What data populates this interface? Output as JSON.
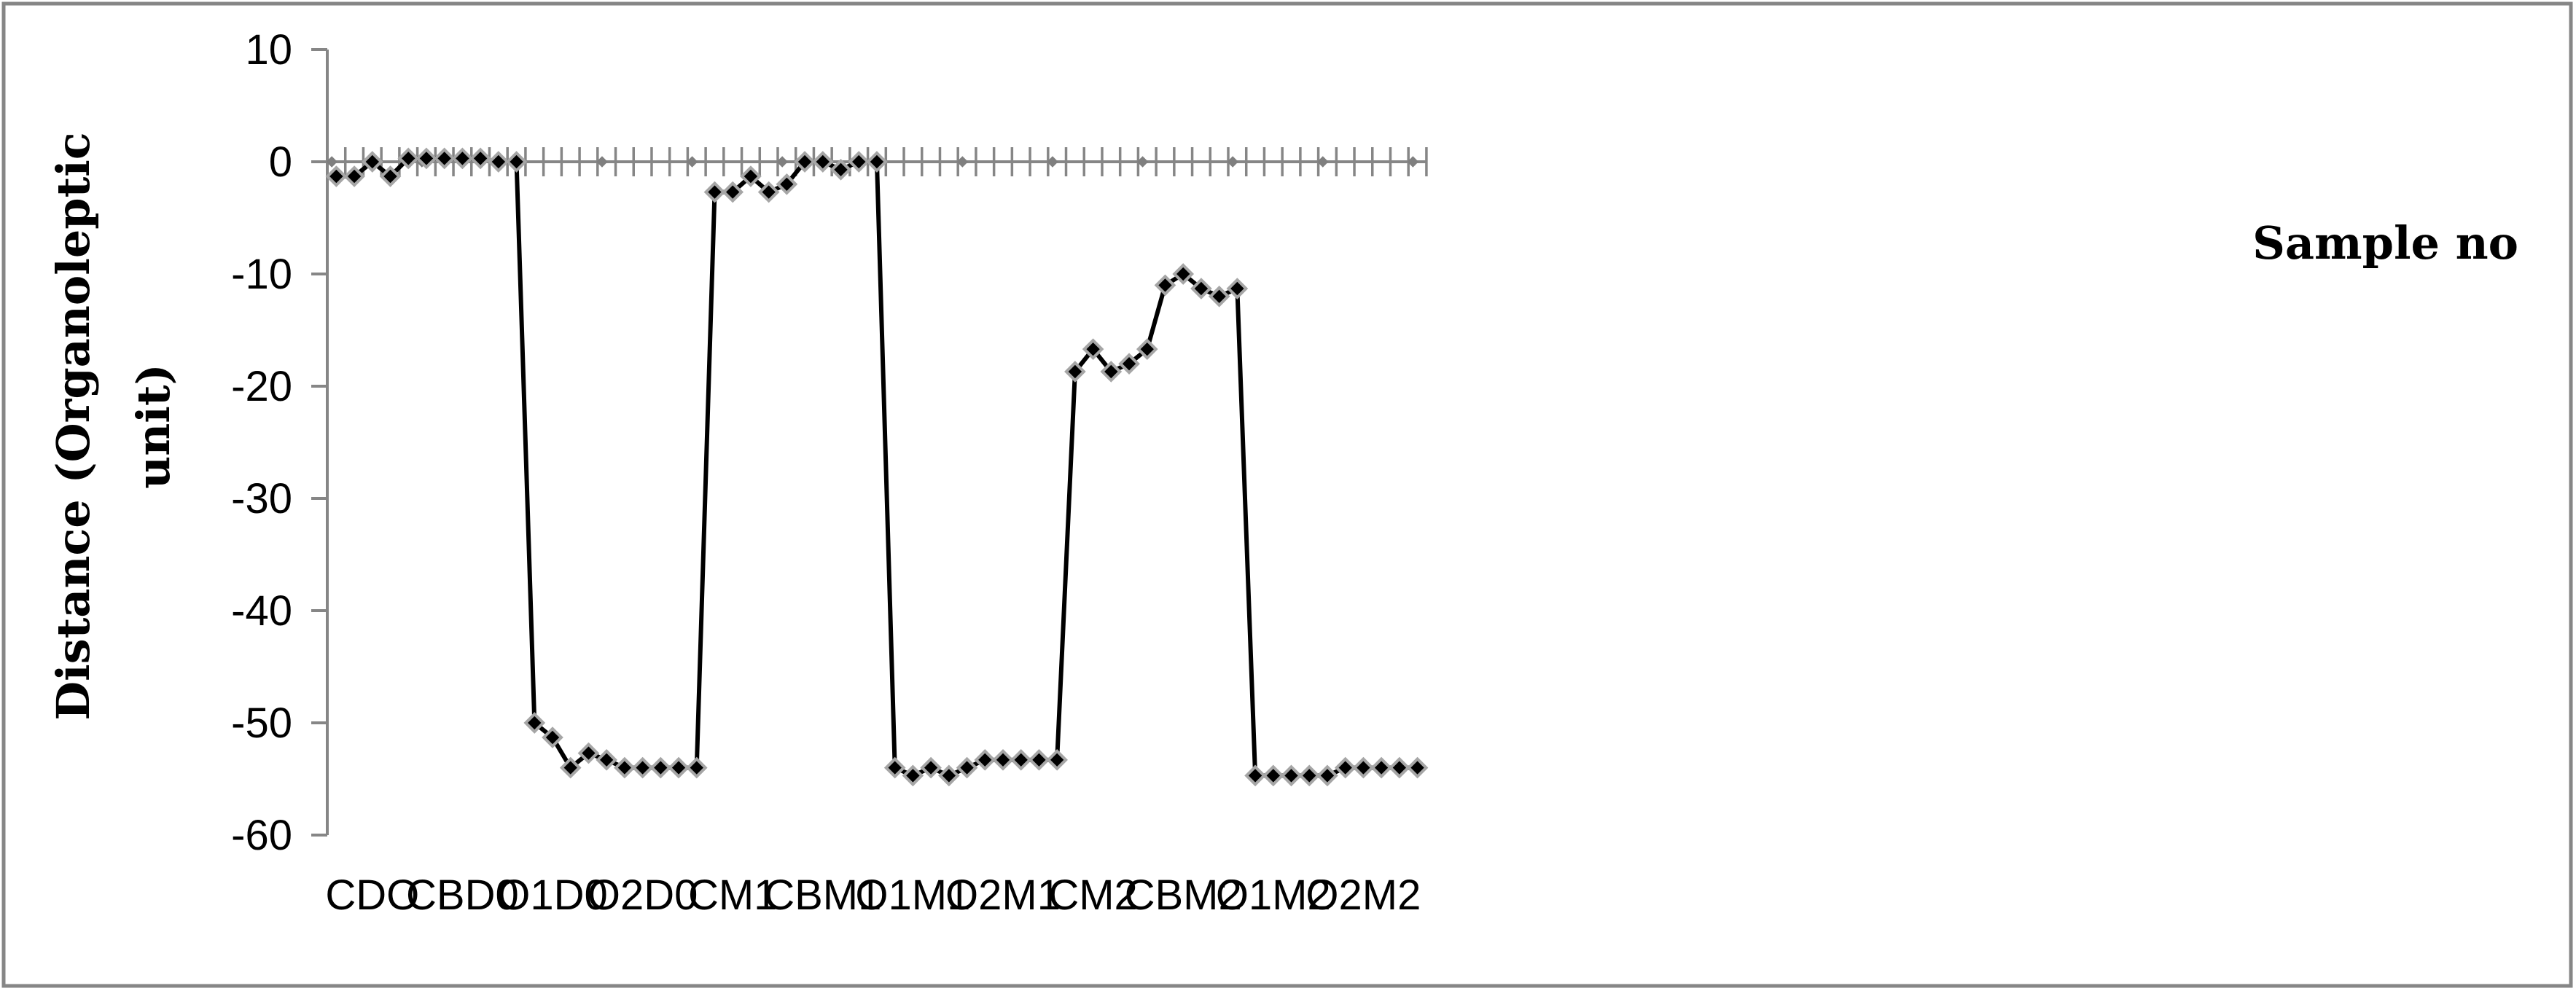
{
  "chart_data": {
    "type": "line",
    "title": "",
    "xlabel": "Sample no",
    "ylabel_lines": [
      "Distance (Organoleptic",
      "unit)"
    ],
    "ylim": [
      -60,
      10
    ],
    "yticks": [
      10,
      0,
      -10,
      -20,
      -30,
      -40,
      -50,
      -60
    ],
    "ytick_labels": [
      "10",
      "0",
      "-10",
      "-20",
      "-30",
      "-40",
      "-50",
      "-60"
    ],
    "x_label_positions": [
      1,
      6,
      11,
      16,
      21,
      26,
      31,
      36,
      41,
      46,
      51,
      56
    ],
    "x_labels": [
      "CDO",
      "CBD0",
      "O1D0",
      "O2D0",
      "CM1",
      "CBM1",
      "O1M1",
      "O2M1",
      "CM2",
      "CBM2",
      "O1M2",
      "O2M2"
    ],
    "series": [
      {
        "x": [
          1,
          2,
          3,
          4,
          5,
          6,
          7,
          8,
          9,
          10,
          11,
          12,
          13,
          14,
          15,
          16,
          17,
          18,
          19,
          20,
          21,
          22,
          23,
          24,
          25,
          26,
          27,
          28,
          29,
          30,
          31,
          32,
          33,
          34,
          35,
          36,
          37,
          38,
          39,
          40,
          41,
          42,
          43,
          44,
          45,
          46,
          47,
          48,
          49,
          50,
          51,
          52,
          53,
          54,
          55,
          56,
          57,
          58,
          59,
          60,
          61
        ],
        "values": [
          -1.3,
          -1.3,
          0,
          -1.3,
          0.3,
          0.3,
          0.3,
          0.3,
          0.3,
          0,
          0,
          -50,
          -51.3,
          -54,
          -52.7,
          -53.3,
          -54,
          -54,
          -54,
          -54,
          -54,
          -2.7,
          -2.7,
          -1.3,
          -2.7,
          -2,
          0,
          0,
          -0.7,
          0,
          0,
          -54,
          -54.7,
          -54,
          -54.7,
          -54,
          -53.3,
          -53.3,
          -53.3,
          -53.3,
          -53.3,
          -18.7,
          -16.7,
          -18.7,
          -18,
          -16.7,
          -11,
          -10,
          -11.3,
          -12,
          -11.3,
          -54.7,
          -54.7,
          -54.7,
          -54.7,
          -54.7,
          -54,
          -54,
          -54,
          -54,
          -54
        ]
      }
    ],
    "markers_on_zero_axis": [
      1,
      11,
      21,
      31,
      41,
      51,
      61,
      71,
      81,
      91,
      101,
      111,
      121
    ],
    "colors": {
      "line": "#000000",
      "marker_fill": "#000000",
      "marker_edge": "#a6a6a6",
      "axis": "#868686",
      "frame": "#868686"
    },
    "grid": false,
    "legend": "none"
  }
}
